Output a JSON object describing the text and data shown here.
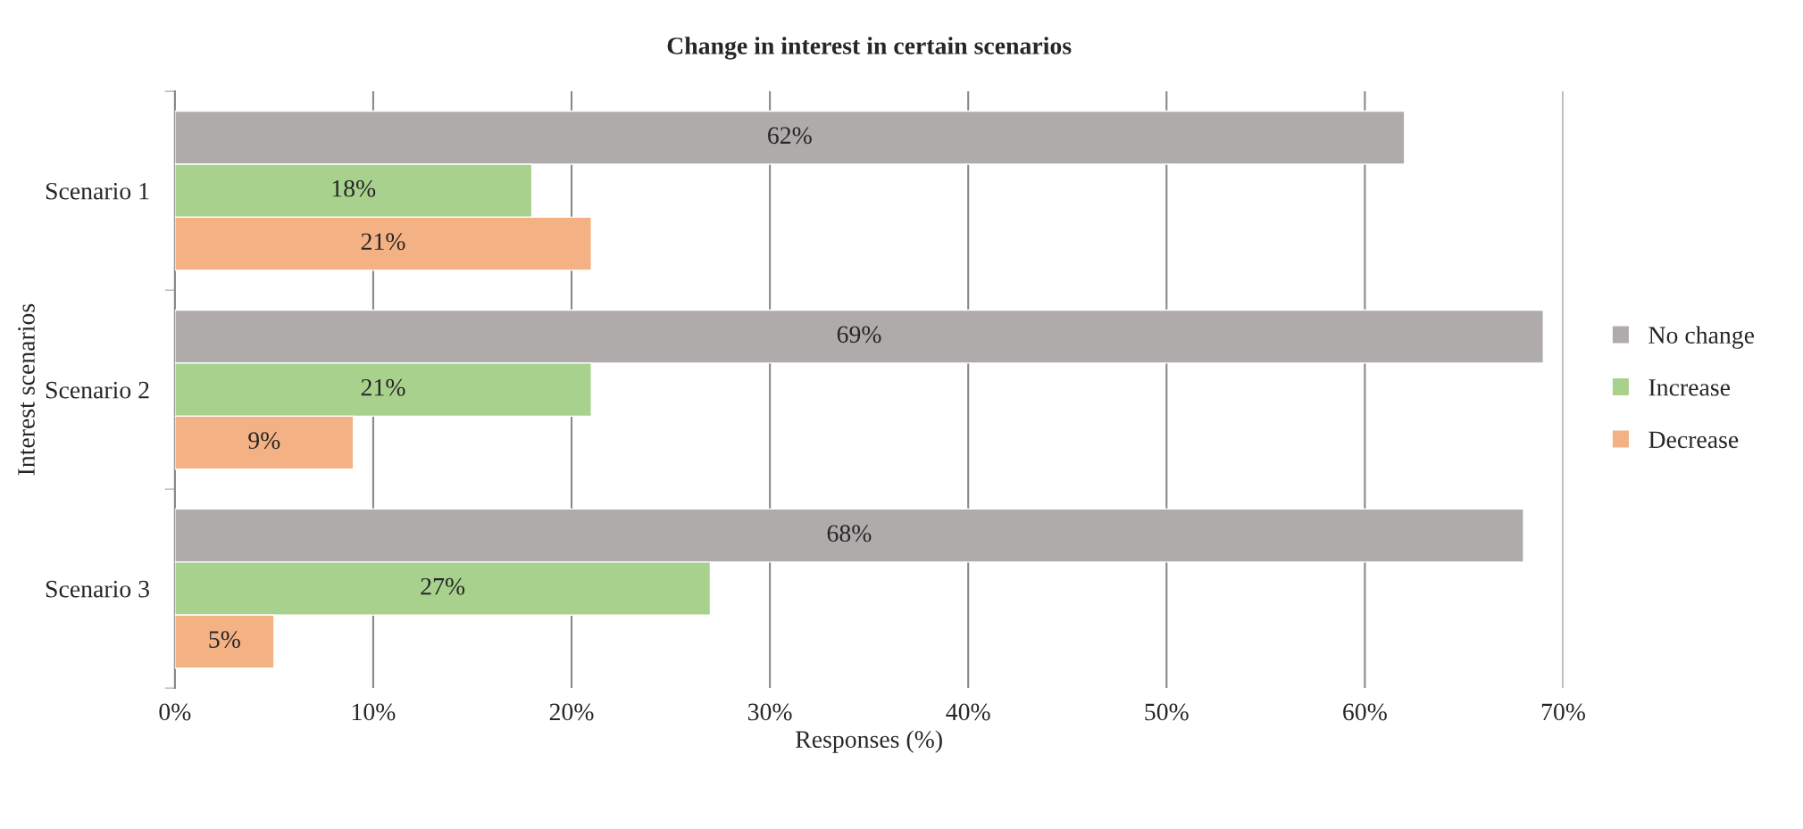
{
  "chart_data": {
    "type": "bar",
    "orientation": "horizontal",
    "title": "Change in interest in certain scenarios",
    "xlabel": "Responses (%)",
    "ylabel": "Interest scenarios",
    "categories": [
      "Scenario 1",
      "Scenario 2",
      "Scenario 3"
    ],
    "series": [
      {
        "name": "No change",
        "color": "#afabab",
        "values": [
          62,
          69,
          68
        ],
        "value_labels": [
          "62%",
          "69%",
          "68%"
        ]
      },
      {
        "name": "Increase",
        "color": "#a9d18e",
        "values": [
          18,
          21,
          27
        ],
        "value_labels": [
          "18%",
          "21%",
          "27%"
        ]
      },
      {
        "name": "Decrease",
        "color": "#f4b183",
        "values": [
          21,
          9,
          5
        ],
        "value_labels": [
          "21%",
          "9%",
          "5%"
        ]
      }
    ],
    "xlim": [
      0,
      70
    ],
    "xticks": [
      {
        "value": 0,
        "label": "0%"
      },
      {
        "value": 10,
        "label": "10%"
      },
      {
        "value": 20,
        "label": "20%"
      },
      {
        "value": 30,
        "label": "30%"
      },
      {
        "value": 40,
        "label": "40%"
      },
      {
        "value": 50,
        "label": "50%"
      },
      {
        "value": 60,
        "label": "60%"
      },
      {
        "value": 70,
        "label": "70%"
      }
    ],
    "grid": "x",
    "legend": "right"
  }
}
